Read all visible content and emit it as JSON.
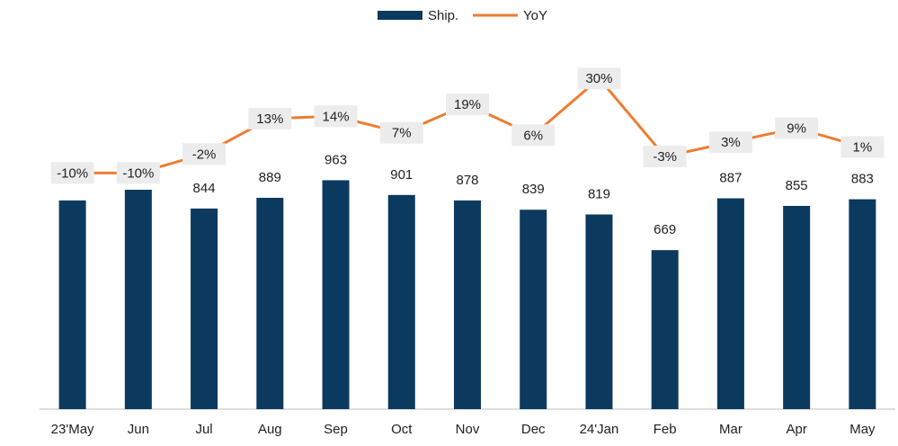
{
  "chart_data": {
    "type": "bar",
    "categories": [
      "23'May",
      "Jun",
      "Jul",
      "Aug",
      "Sep",
      "Oct",
      "Nov",
      "Dec",
      "24'Jan",
      "Feb",
      "Mar",
      "Apr",
      "May"
    ],
    "series": [
      {
        "name": "Ship.",
        "color": "#0b3a5e",
        "values": [
          878,
          923,
          844,
          889,
          963,
          901,
          878,
          839,
          819,
          669,
          887,
          855,
          883
        ],
        "value_labels": [
          null,
          null,
          "844",
          "889",
          "963",
          "901",
          "878",
          "839",
          "819",
          "669",
          "887",
          "855",
          "883"
        ]
      },
      {
        "name": "YoY",
        "color": "#ed7d31",
        "axis": "y2",
        "values": [
          -10,
          -10,
          -2,
          13,
          14,
          7,
          19,
          6,
          30,
          -3,
          3,
          9,
          1
        ],
        "value_labels": [
          "-10%",
          "-10%",
          "-2%",
          "13%",
          "14%",
          "7%",
          "19%",
          "6%",
          "30%",
          "-3%",
          "3%",
          "9%",
          "1%"
        ]
      }
    ],
    "ylim": [
      0,
      1570
    ],
    "y2lim": [
      -110,
      48
    ]
  }
}
